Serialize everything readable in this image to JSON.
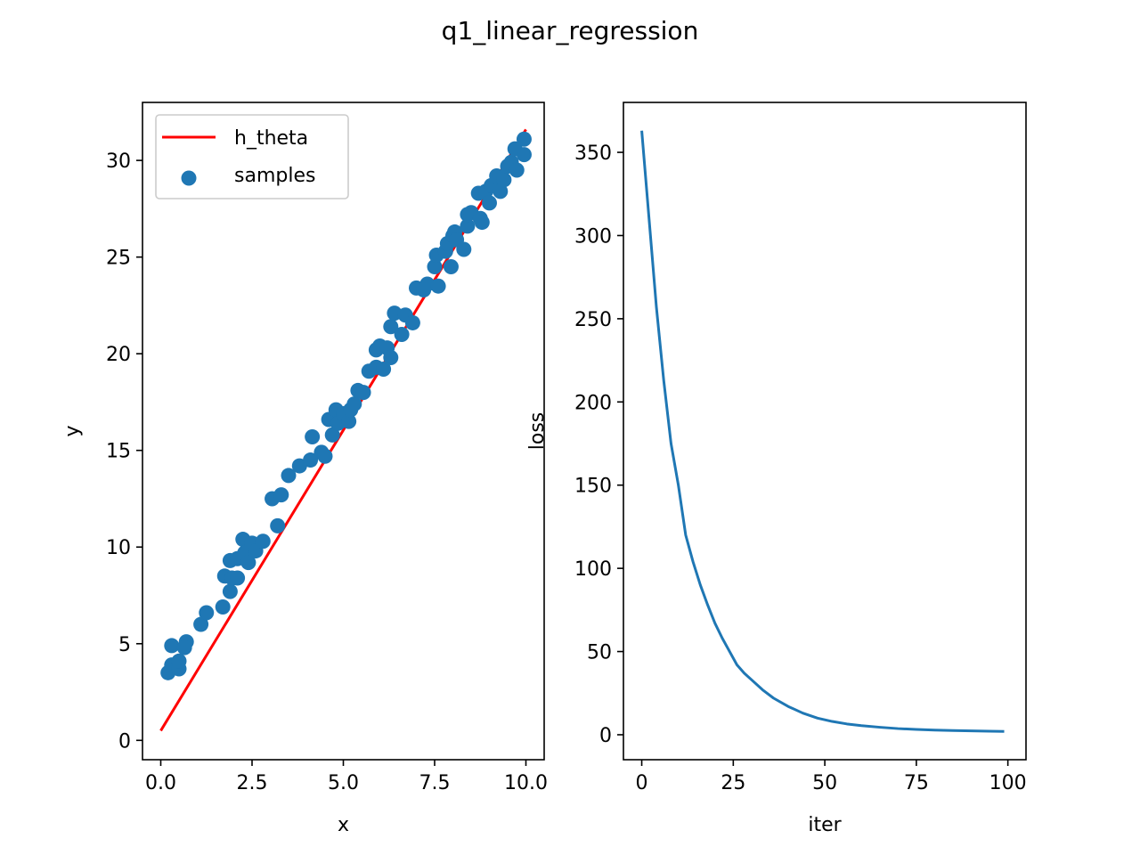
{
  "figure": {
    "title": "q1_linear_regression"
  },
  "chart_data": [
    {
      "type": "scatter",
      "xlabel": "x",
      "ylabel": "y",
      "xlim": [
        -0.5,
        10.5
      ],
      "ylim": [
        -1.0,
        33.0
      ],
      "xticks": [
        0.0,
        2.5,
        5.0,
        7.5,
        10.0
      ],
      "xtick_labels": [
        "0.0",
        "2.5",
        "5.0",
        "7.5",
        "10.0"
      ],
      "yticks": [
        0,
        5,
        10,
        15,
        20,
        25,
        30
      ],
      "ytick_labels": [
        "0",
        "5",
        "10",
        "15",
        "20",
        "25",
        "30"
      ],
      "grid": false,
      "legend": {
        "placement": "upper-left",
        "entries": [
          "h_theta",
          "samples"
        ]
      },
      "series": [
        {
          "name": "h_theta",
          "kind": "line",
          "color": "#ff0000",
          "x": [
            0.0,
            10.0
          ],
          "y": [
            0.5,
            31.6
          ]
        },
        {
          "name": "samples",
          "kind": "scatter",
          "color": "#1f77b4",
          "points": [
            [
              0.2,
              3.5
            ],
            [
              0.3,
              4.9
            ],
            [
              0.3,
              3.9
            ],
            [
              0.5,
              3.7
            ],
            [
              0.5,
              4.1
            ],
            [
              0.7,
              5.1
            ],
            [
              0.65,
              4.8
            ],
            [
              1.1,
              6.0
            ],
            [
              1.25,
              6.6
            ],
            [
              1.7,
              6.9
            ],
            [
              1.75,
              8.5
            ],
            [
              1.9,
              7.7
            ],
            [
              1.95,
              8.4
            ],
            [
              1.9,
              9.3
            ],
            [
              2.1,
              9.4
            ],
            [
              2.1,
              8.4
            ],
            [
              2.25,
              10.4
            ],
            [
              2.3,
              9.7
            ],
            [
              2.4,
              9.2
            ],
            [
              2.5,
              10.2
            ],
            [
              2.6,
              9.8
            ],
            [
              2.8,
              10.3
            ],
            [
              3.05,
              12.5
            ],
            [
              3.2,
              11.1
            ],
            [
              3.3,
              12.7
            ],
            [
              3.5,
              13.7
            ],
            [
              3.8,
              14.2
            ],
            [
              4.1,
              14.5
            ],
            [
              4.15,
              15.7
            ],
            [
              4.4,
              14.9
            ],
            [
              4.5,
              14.7
            ],
            [
              4.6,
              16.6
            ],
            [
              4.7,
              15.8
            ],
            [
              4.8,
              17.1
            ],
            [
              4.85,
              16.4
            ],
            [
              5.0,
              16.9
            ],
            [
              5.15,
              16.5
            ],
            [
              5.2,
              17.1
            ],
            [
              5.3,
              17.4
            ],
            [
              5.4,
              18.1
            ],
            [
              5.55,
              18.0
            ],
            [
              5.7,
              19.1
            ],
            [
              5.9,
              19.3
            ],
            [
              5.9,
              20.2
            ],
            [
              6.0,
              20.4
            ],
            [
              6.1,
              19.2
            ],
            [
              6.2,
              20.3
            ],
            [
              6.3,
              21.4
            ],
            [
              6.3,
              19.8
            ],
            [
              6.4,
              22.1
            ],
            [
              6.6,
              21.0
            ],
            [
              6.7,
              22.0
            ],
            [
              6.9,
              21.6
            ],
            [
              7.0,
              23.4
            ],
            [
              7.2,
              23.3
            ],
            [
              7.3,
              23.6
            ],
            [
              7.5,
              24.5
            ],
            [
              7.55,
              25.1
            ],
            [
              7.6,
              23.5
            ],
            [
              7.8,
              25.3
            ],
            [
              7.85,
              25.7
            ],
            [
              7.95,
              24.5
            ],
            [
              8.0,
              26.1
            ],
            [
              8.05,
              26.3
            ],
            [
              8.1,
              25.9
            ],
            [
              8.3,
              25.4
            ],
            [
              8.4,
              26.6
            ],
            [
              8.4,
              27.2
            ],
            [
              8.5,
              27.3
            ],
            [
              8.7,
              28.3
            ],
            [
              8.75,
              27.0
            ],
            [
              8.8,
              26.8
            ],
            [
              8.9,
              28.4
            ],
            [
              9.0,
              27.8
            ],
            [
              9.05,
              28.7
            ],
            [
              9.2,
              29.2
            ],
            [
              9.3,
              28.4
            ],
            [
              9.4,
              29.0
            ],
            [
              9.5,
              29.7
            ],
            [
              9.6,
              29.9
            ],
            [
              9.7,
              30.6
            ],
            [
              9.75,
              29.5
            ],
            [
              9.95,
              30.3
            ],
            [
              9.95,
              31.1
            ]
          ]
        }
      ]
    },
    {
      "type": "line",
      "xlabel": "iter",
      "ylabel": "loss",
      "xlim": [
        -5,
        104.95
      ],
      "ylim": [
        -15,
        380
      ],
      "xticks": [
        0,
        25,
        50,
        75,
        100
      ],
      "xtick_labels": [
        "0",
        "25",
        "50",
        "75",
        "100"
      ],
      "yticks": [
        0,
        50,
        100,
        150,
        200,
        250,
        300,
        350
      ],
      "ytick_labels": [
        "0",
        "50",
        "100",
        "150",
        "200",
        "250",
        "300",
        "350"
      ],
      "grid": false,
      "series": [
        {
          "color": "#1f77b4",
          "x": [
            0,
            2,
            4,
            6,
            8,
            10,
            12,
            14,
            16,
            18,
            20,
            22,
            24,
            26,
            28,
            30,
            33,
            36,
            40,
            44,
            48,
            52,
            56,
            60,
            65,
            70,
            75,
            80,
            85,
            90,
            95,
            99
          ],
          "y": [
            363,
            310,
            257,
            213,
            175,
            150,
            120,
            104,
            90,
            78,
            67,
            58,
            50,
            42,
            37,
            33,
            27,
            22,
            17,
            13,
            10,
            8,
            6.5,
            5.5,
            4.5,
            3.7,
            3.2,
            2.8,
            2.5,
            2.3,
            2.1,
            2.0
          ]
        }
      ]
    }
  ]
}
